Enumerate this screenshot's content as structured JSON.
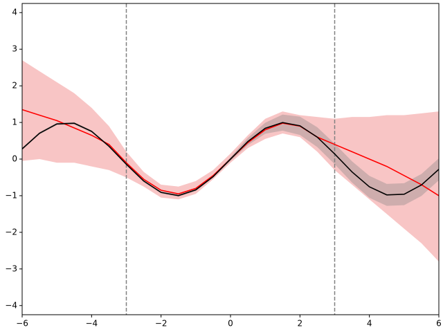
{
  "chart_data": {
    "type": "line",
    "x": [
      -6,
      -5.5,
      -5,
      -4.5,
      -4,
      -3.5,
      -3,
      -2.5,
      -2,
      -1.5,
      -1,
      -0.5,
      0,
      0.5,
      1,
      1.5,
      2,
      2.5,
      3,
      3.5,
      4,
      4.5,
      5,
      5.5,
      6
    ],
    "bands": [
      {
        "color": "#f4a6a6",
        "opacity": 0.65,
        "lower": [
          -0.05,
          0.0,
          -0.1,
          -0.1,
          -0.2,
          -0.3,
          -0.5,
          -0.75,
          -1.05,
          -1.1,
          -0.95,
          -0.55,
          -0.1,
          0.3,
          0.55,
          0.7,
          0.6,
          0.2,
          -0.3,
          -0.7,
          -1.1,
          -1.5,
          -1.9,
          -2.3,
          -2.8
        ],
        "upper": [
          2.7,
          2.4,
          2.1,
          1.8,
          1.4,
          0.9,
          0.2,
          -0.35,
          -0.7,
          -0.75,
          -0.6,
          -0.3,
          0.15,
          0.65,
          1.1,
          1.3,
          1.2,
          1.15,
          1.1,
          1.15,
          1.15,
          1.2,
          1.2,
          1.25,
          1.3
        ]
      },
      {
        "color": "#808080",
        "opacity": 0.35,
        "lower": [
          0.249,
          0.676,
          0.929,
          0.948,
          0.727,
          0.321,
          -0.171,
          -0.628,
          -0.939,
          -1.027,
          -0.871,
          -0.509,
          -0.05,
          0.379,
          0.691,
          0.777,
          0.659,
          0.328,
          -0.139,
          -0.641,
          -1.057,
          -1.278,
          -1.259,
          -1.006,
          -0.579
        ],
        "upper": [
          0.309,
          0.736,
          0.989,
          1.008,
          0.787,
          0.381,
          -0.111,
          -0.568,
          -0.879,
          -0.967,
          -0.811,
          -0.449,
          0.05,
          0.579,
          0.991,
          1.217,
          1.159,
          0.868,
          0.421,
          -0.061,
          -0.457,
          -0.678,
          -0.659,
          -0.406,
          0.021
        ]
      }
    ],
    "series": [
      {
        "color": "#ff0000",
        "values": [
          1.35,
          1.2,
          1.05,
          0.85,
          0.65,
          0.4,
          -0.1,
          -0.55,
          -0.85,
          -0.95,
          -0.8,
          -0.45,
          0.0,
          0.45,
          0.8,
          0.98,
          0.9,
          0.6,
          0.4,
          0.2,
          0.0,
          -0.2,
          -0.45,
          -0.7,
          -1.0
        ]
      },
      {
        "color": "#000000",
        "values": [
          0.279,
          0.706,
          0.959,
          0.978,
          0.757,
          0.351,
          -0.141,
          -0.598,
          -0.909,
          -0.997,
          -0.841,
          -0.479,
          0,
          0.479,
          0.841,
          0.997,
          0.909,
          0.598,
          0.141,
          -0.351,
          -0.757,
          -0.978,
          -0.959,
          -0.706,
          -0.279
        ]
      }
    ],
    "vlines": [
      -3,
      3
    ],
    "vline_color": "#808080",
    "xlim": [
      -6,
      6
    ],
    "xticks": [
      {
        "value": -6,
        "label": "−6"
      },
      {
        "value": -4,
        "label": "−4"
      },
      {
        "value": -2,
        "label": "−2"
      },
      0,
      2,
      4,
      6
    ],
    "ylim": [
      -4.25,
      4.25
    ],
    "yticks": [
      {
        "value": -4,
        "label": "−4"
      },
      {
        "value": -3,
        "label": "−3"
      },
      {
        "value": -2,
        "label": "−2"
      },
      {
        "value": -1,
        "label": "−1"
      },
      0,
      1,
      2,
      3,
      4
    ]
  }
}
